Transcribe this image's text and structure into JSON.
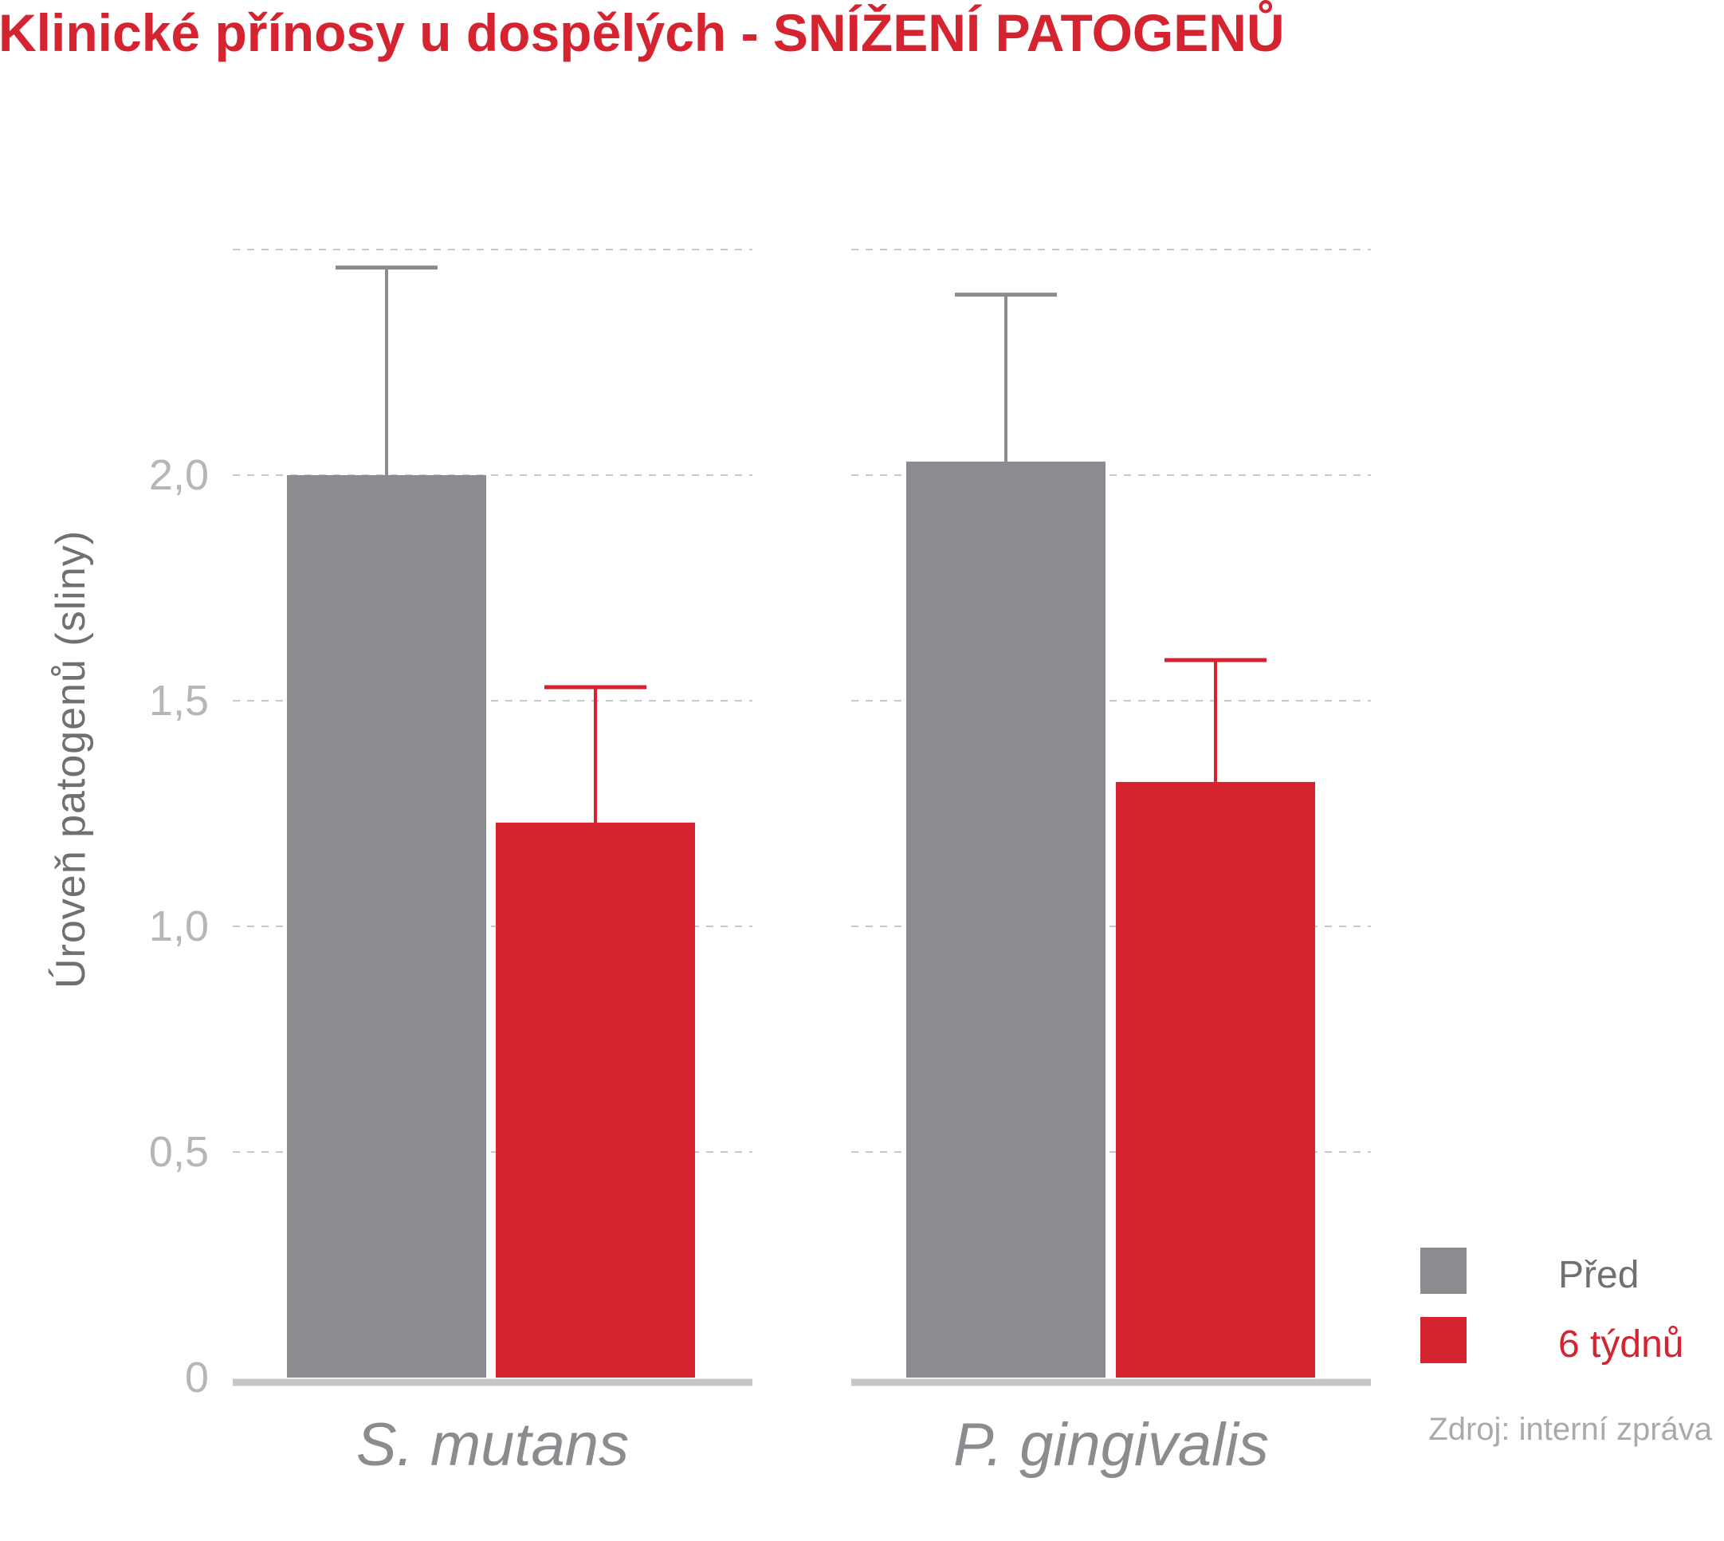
{
  "chart_data": {
    "type": "bar",
    "title": "Klinické přínosy u dospělých - SNÍŽENÍ PATOGENŮ",
    "ylabel": "Úroveň patogenů (sliny)",
    "ylim": [
      0,
      2.5
    ],
    "yticks": [
      {
        "value": 0,
        "label": "0"
      },
      {
        "value": 0.5,
        "label": "0,5"
      },
      {
        "value": 1.0,
        "label": "1,0"
      },
      {
        "value": 1.5,
        "label": "1,5"
      },
      {
        "value": 2.0,
        "label": "2,0"
      }
    ],
    "grid_values": [
      0.5,
      1.0,
      1.5,
      2.0,
      2.5
    ],
    "grid": true,
    "categories": [
      "S. mutans",
      "P. gingivalis"
    ],
    "series": [
      {
        "name": "Před",
        "color": "#8b8c90",
        "values": [
          2.0,
          2.03
        ],
        "error": [
          0.46,
          0.37
        ]
      },
      {
        "name": "6 týdnů",
        "color": "#d52330",
        "values": [
          1.23,
          1.32
        ],
        "error": [
          0.3,
          0.27
        ]
      }
    ],
    "legend_position": "bottom-right",
    "source": "Zdroj: interní zpráva"
  }
}
